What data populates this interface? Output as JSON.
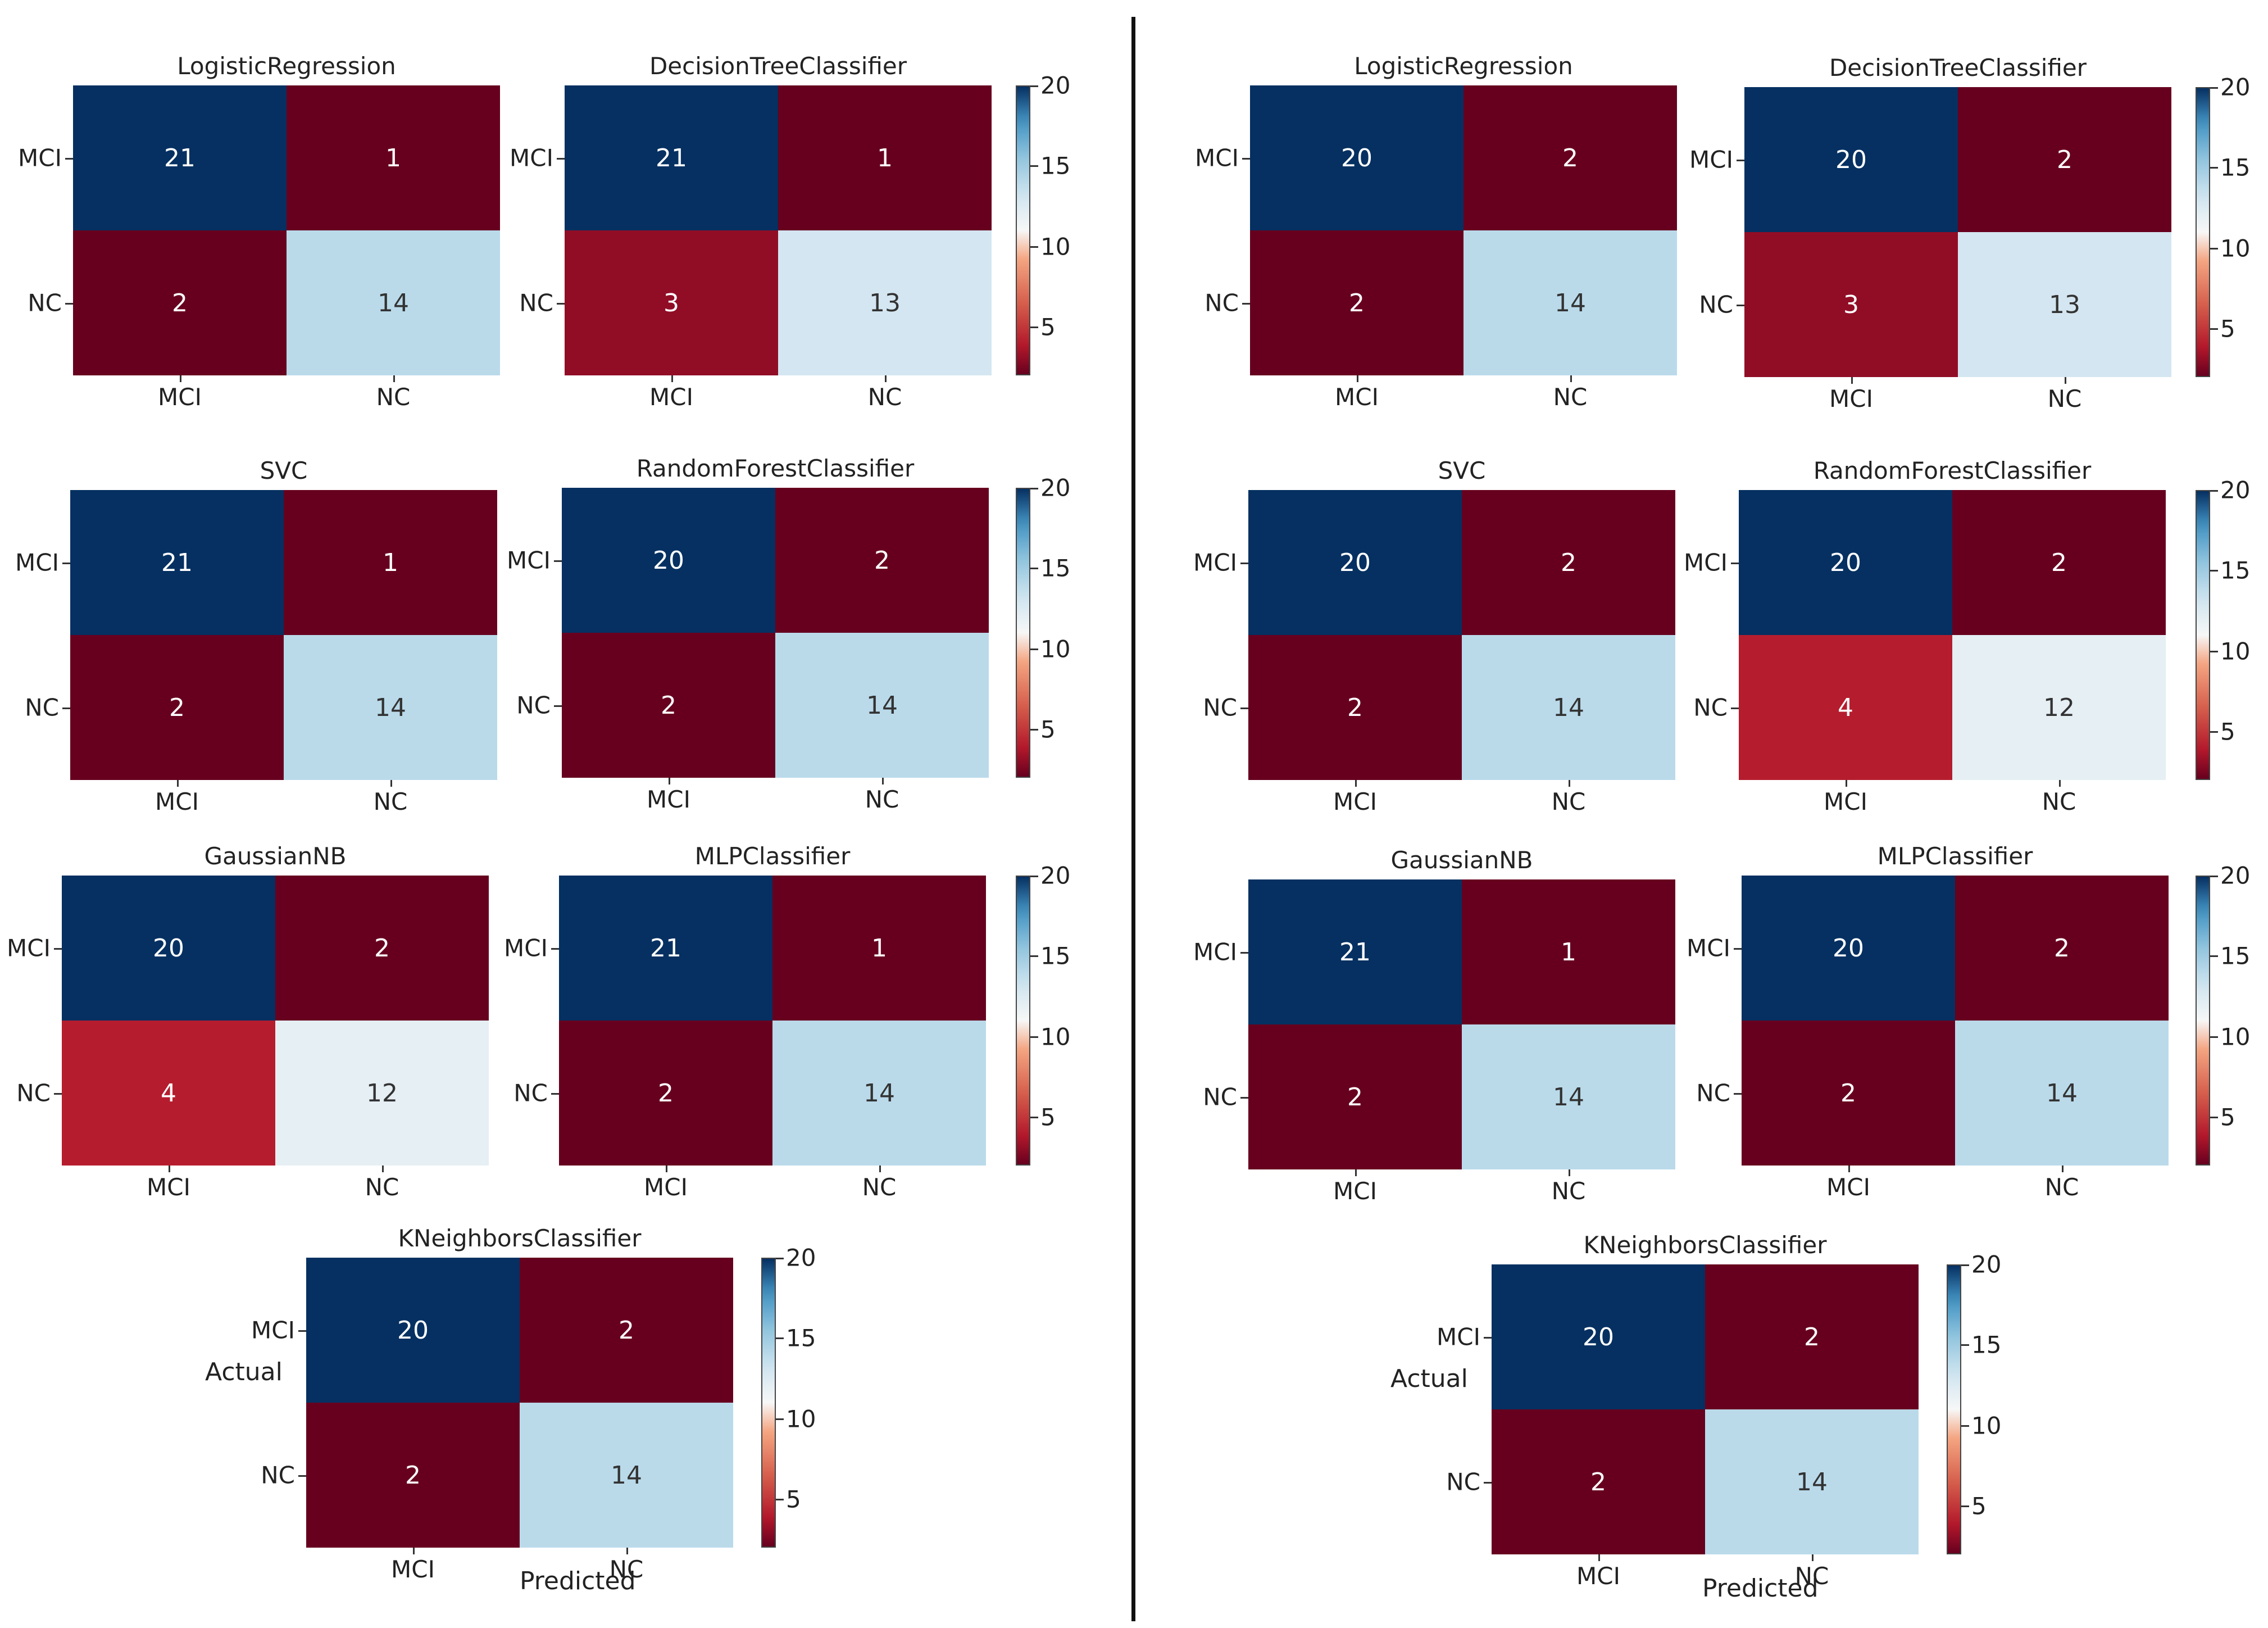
{
  "chart_data": {
    "type": "heatmap",
    "description_axis": {
      "ylabel": "Actual",
      "xlabel": "Predicted"
    },
    "categories": [
      "MCI",
      "NC"
    ],
    "colormap": "RdBu",
    "colorbar": {
      "ticks": [
        "5",
        "10",
        "15",
        "20"
      ],
      "min": 2,
      "max": 20
    },
    "panels": [
      {
        "name": "left",
        "matrices": [
          {
            "title": "LogisticRegression",
            "values": [
              [
                21,
                1
              ],
              [
                2,
                14
              ]
            ]
          },
          {
            "title": "DecisionTreeClassifier",
            "values": [
              [
                21,
                1
              ],
              [
                3,
                13
              ]
            ]
          },
          {
            "title": "SVC",
            "values": [
              [
                21,
                1
              ],
              [
                2,
                14
              ]
            ]
          },
          {
            "title": "RandomForestClassifier",
            "values": [
              [
                20,
                2
              ],
              [
                2,
                14
              ]
            ]
          },
          {
            "title": "GaussianNB",
            "values": [
              [
                20,
                2
              ],
              [
                4,
                12
              ]
            ]
          },
          {
            "title": "MLPClassifier",
            "values": [
              [
                21,
                1
              ],
              [
                2,
                14
              ]
            ]
          },
          {
            "title": "KNeighborsClassifier",
            "values": [
              [
                20,
                2
              ],
              [
                2,
                14
              ]
            ]
          }
        ]
      },
      {
        "name": "right",
        "matrices": [
          {
            "title": "LogisticRegression",
            "values": [
              [
                20,
                2
              ],
              [
                2,
                14
              ]
            ]
          },
          {
            "title": "DecisionTreeClassifier",
            "values": [
              [
                20,
                2
              ],
              [
                3,
                13
              ]
            ]
          },
          {
            "title": "SVC",
            "values": [
              [
                20,
                2
              ],
              [
                2,
                14
              ]
            ]
          },
          {
            "title": "RandomForestClassifier",
            "values": [
              [
                20,
                2
              ],
              [
                4,
                12
              ]
            ]
          },
          {
            "title": "GaussianNB",
            "values": [
              [
                21,
                1
              ],
              [
                2,
                14
              ]
            ]
          },
          {
            "title": "MLPClassifier",
            "values": [
              [
                20,
                2
              ],
              [
                2,
                14
              ]
            ]
          },
          {
            "title": "KNeighborsClassifier",
            "values": [
              [
                20,
                2
              ],
              [
                2,
                14
              ]
            ]
          }
        ]
      }
    ]
  }
}
